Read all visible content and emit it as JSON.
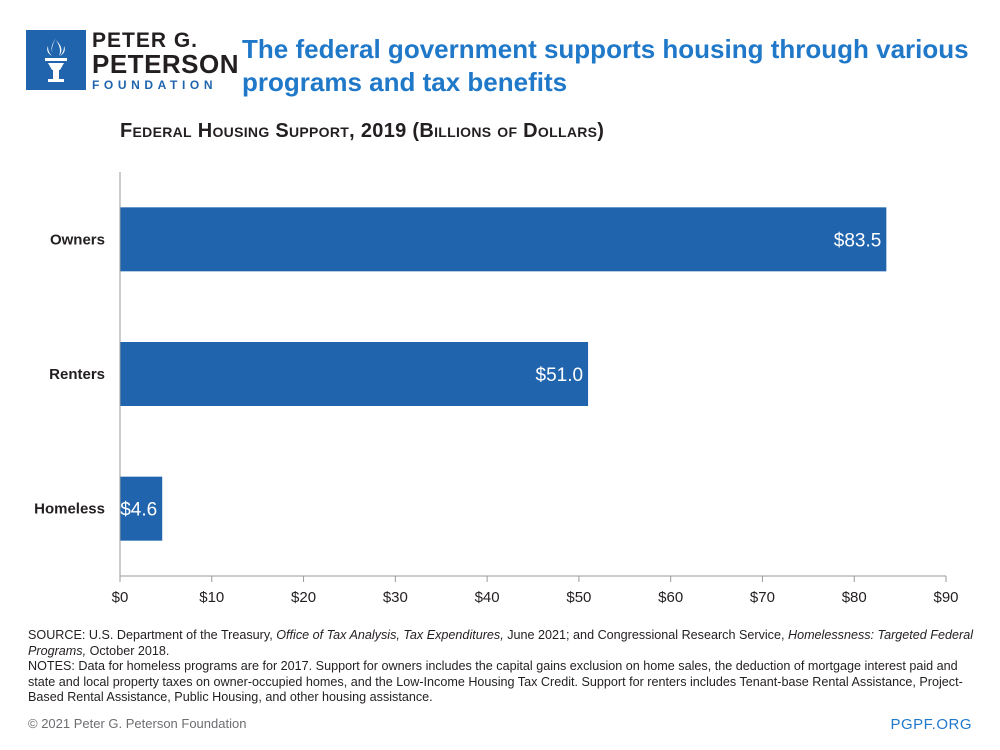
{
  "logo": {
    "line1": "PETER G.",
    "line2": "PETERSON",
    "line3": "FOUNDATION",
    "icon": "torch-icon",
    "color": "#1f64ad"
  },
  "headline": "The federal government supports housing through various programs and tax benefits",
  "chart_data": {
    "type": "bar",
    "orientation": "horizontal",
    "title": "Federal Housing Support, 2019 (Billions of Dollars)",
    "categories": [
      "Owners",
      "Renters",
      "Homeless"
    ],
    "values": [
      83.5,
      51.0,
      4.6
    ],
    "data_labels": [
      "$83.5",
      "$51.0",
      "$4.6"
    ],
    "xlim": [
      0,
      90
    ],
    "xticks": [
      0,
      10,
      20,
      30,
      40,
      50,
      60,
      70,
      80,
      90
    ],
    "xtick_labels": [
      "$0",
      "$10",
      "$20",
      "$30",
      "$40",
      "$50",
      "$60",
      "$70",
      "$80",
      "$90"
    ],
    "xlabel": "",
    "ylabel": "",
    "grid": false,
    "bar_color": "#1f64ad"
  },
  "footnotes": {
    "source_prefix": "SOURCE: U.S. Department of the Treasury, ",
    "source_italic1": "Office of Tax Analysis, Tax Expenditures,",
    "source_mid": " June 2021; and Congressional Research Service, ",
    "source_italic2": "Homelessness: Targeted Federal Programs,",
    "source_suffix": " October 2018.",
    "notes": "NOTES: Data for homeless programs are for 2017. Support for owners includes the capital gains exclusion on home sales, the deduction of mortgage interest paid and state and local property taxes on owner-occupied homes, and the Low-Income Housing Tax Credit. Support for renters includes Tenant-base Rental Assistance, Project-Based Rental Assistance, Public Housing, and other housing assistance."
  },
  "footer": {
    "copyright": "© 2021 Peter G. Peterson Foundation",
    "site": "PGPF.ORG"
  }
}
